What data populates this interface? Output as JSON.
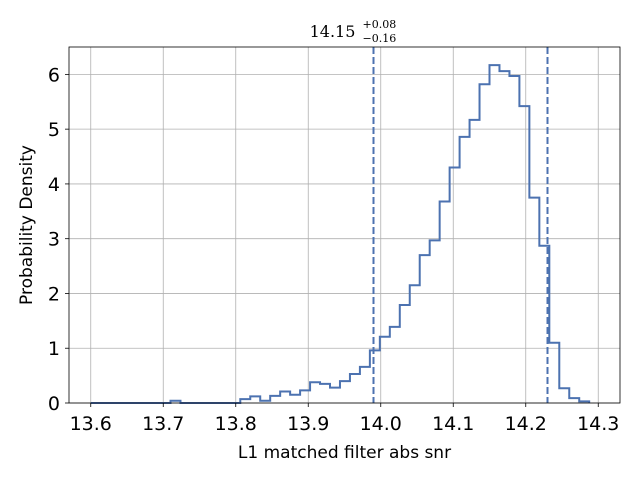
{
  "chart_data": {
    "type": "histogram",
    "title_value": "14.15",
    "title_upper": "+0.08",
    "title_lower": "−0.16",
    "xlabel": "L1 matched filter abs snr",
    "ylabel": "Probability Density",
    "xlim": [
      13.57,
      14.33
    ],
    "ylim": [
      0,
      6.5
    ],
    "xticks": [
      13.6,
      13.7,
      13.8,
      13.9,
      14.0,
      14.1,
      14.2,
      14.3
    ],
    "xtick_labels": [
      "13.6",
      "13.7",
      "13.8",
      "13.9",
      "14.0",
      "14.1",
      "14.2",
      "14.3"
    ],
    "yticks": [
      0,
      1,
      2,
      3,
      4,
      5,
      6
    ],
    "ytick_labels": [
      "0",
      "1",
      "2",
      "3",
      "4",
      "5",
      "6"
    ],
    "grid": true,
    "line_color": "#4c72b0",
    "bin_edges": [
      13.6,
      13.61375,
      13.6275,
      13.64125,
      13.655,
      13.66875,
      13.6825,
      13.69625,
      13.71,
      13.72375,
      13.7375,
      13.75125,
      13.765,
      13.77875,
      13.7925,
      13.80625,
      13.82,
      13.83375,
      13.8475,
      13.86125,
      13.875,
      13.88875,
      13.9025,
      13.91625,
      13.93,
      13.94375,
      13.9575,
      13.97125,
      13.985,
      13.99875,
      14.0125,
      14.02625,
      14.04,
      14.05375,
      14.0675,
      14.08125,
      14.095,
      14.10875,
      14.1225,
      14.13625,
      14.15,
      14.16375,
      14.1775,
      14.19125,
      14.205,
      14.21875,
      14.2325,
      14.24625,
      14.26,
      14.27375,
      14.2875
    ],
    "densities": [
      0.0,
      0.0,
      0.0,
      0.0,
      0.0,
      0.0,
      0.0,
      0.0,
      0.04,
      0.0,
      0.0,
      0.0,
      0.0,
      0.0,
      0.0,
      0.07,
      0.12,
      0.04,
      0.13,
      0.21,
      0.15,
      0.23,
      0.38,
      0.35,
      0.28,
      0.4,
      0.53,
      0.66,
      0.96,
      1.21,
      1.39,
      1.79,
      2.15,
      2.7,
      2.97,
      3.68,
      4.3,
      4.86,
      5.17,
      5.82,
      6.17,
      6.06,
      5.97,
      5.42,
      3.75,
      2.87,
      1.1,
      0.27,
      0.09,
      0.03
    ],
    "vlines": [
      13.99,
      14.23
    ],
    "vline_style": "dashed"
  }
}
